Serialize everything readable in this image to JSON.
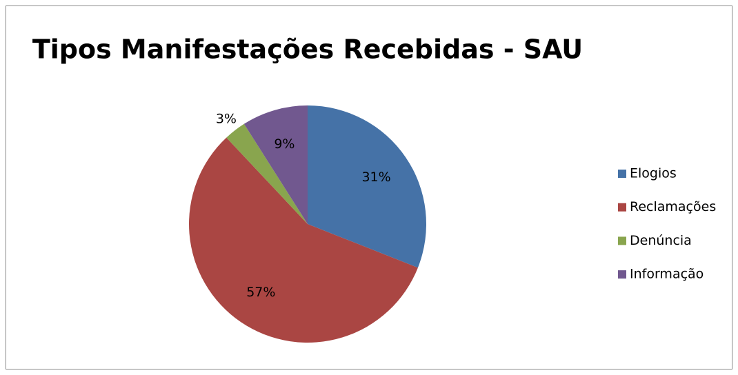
{
  "chart_data": {
    "type": "pie",
    "title": "Tipos Manifestações Recebidas - SAU",
    "categories": [
      "Elogios",
      "Reclamações",
      "Denúncia",
      "Informação"
    ],
    "values": [
      31,
      57,
      3,
      9
    ],
    "value_labels": [
      "31%",
      "57%",
      "3%",
      "9%"
    ],
    "colors": [
      "#4572a7",
      "#aa4643",
      "#89a54e",
      "#71588f"
    ],
    "legend": "right"
  }
}
